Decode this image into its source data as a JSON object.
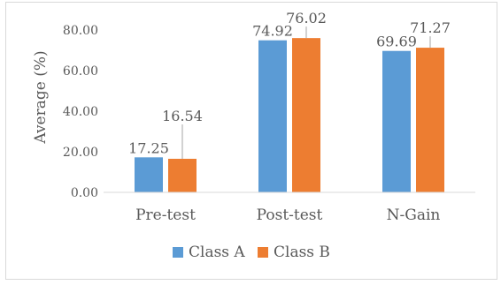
{
  "chart_data": {
    "type": "bar",
    "title": "",
    "xlabel": "",
    "ylabel": "Average (%)",
    "categories": [
      "Pre-test",
      "Post-test",
      "N-Gain"
    ],
    "series": [
      {
        "name": "Class A",
        "color": "#5b9bd5",
        "values": [
          17.25,
          74.92,
          69.69
        ],
        "labels": [
          "17.25",
          "74.92",
          "69.69"
        ]
      },
      {
        "name": "Class B",
        "color": "#ed7d31",
        "values": [
          16.54,
          76.02,
          71.27
        ],
        "labels": [
          "16.54",
          "76.02",
          "71.27"
        ]
      }
    ],
    "ylim": [
      0,
      80
    ],
    "yticks": [
      0,
      20,
      40,
      60,
      80
    ],
    "ytick_labels": [
      "0.00",
      "20.00",
      "40.00",
      "60.00",
      "80.00"
    ],
    "grid": false,
    "legend": "bottom"
  }
}
